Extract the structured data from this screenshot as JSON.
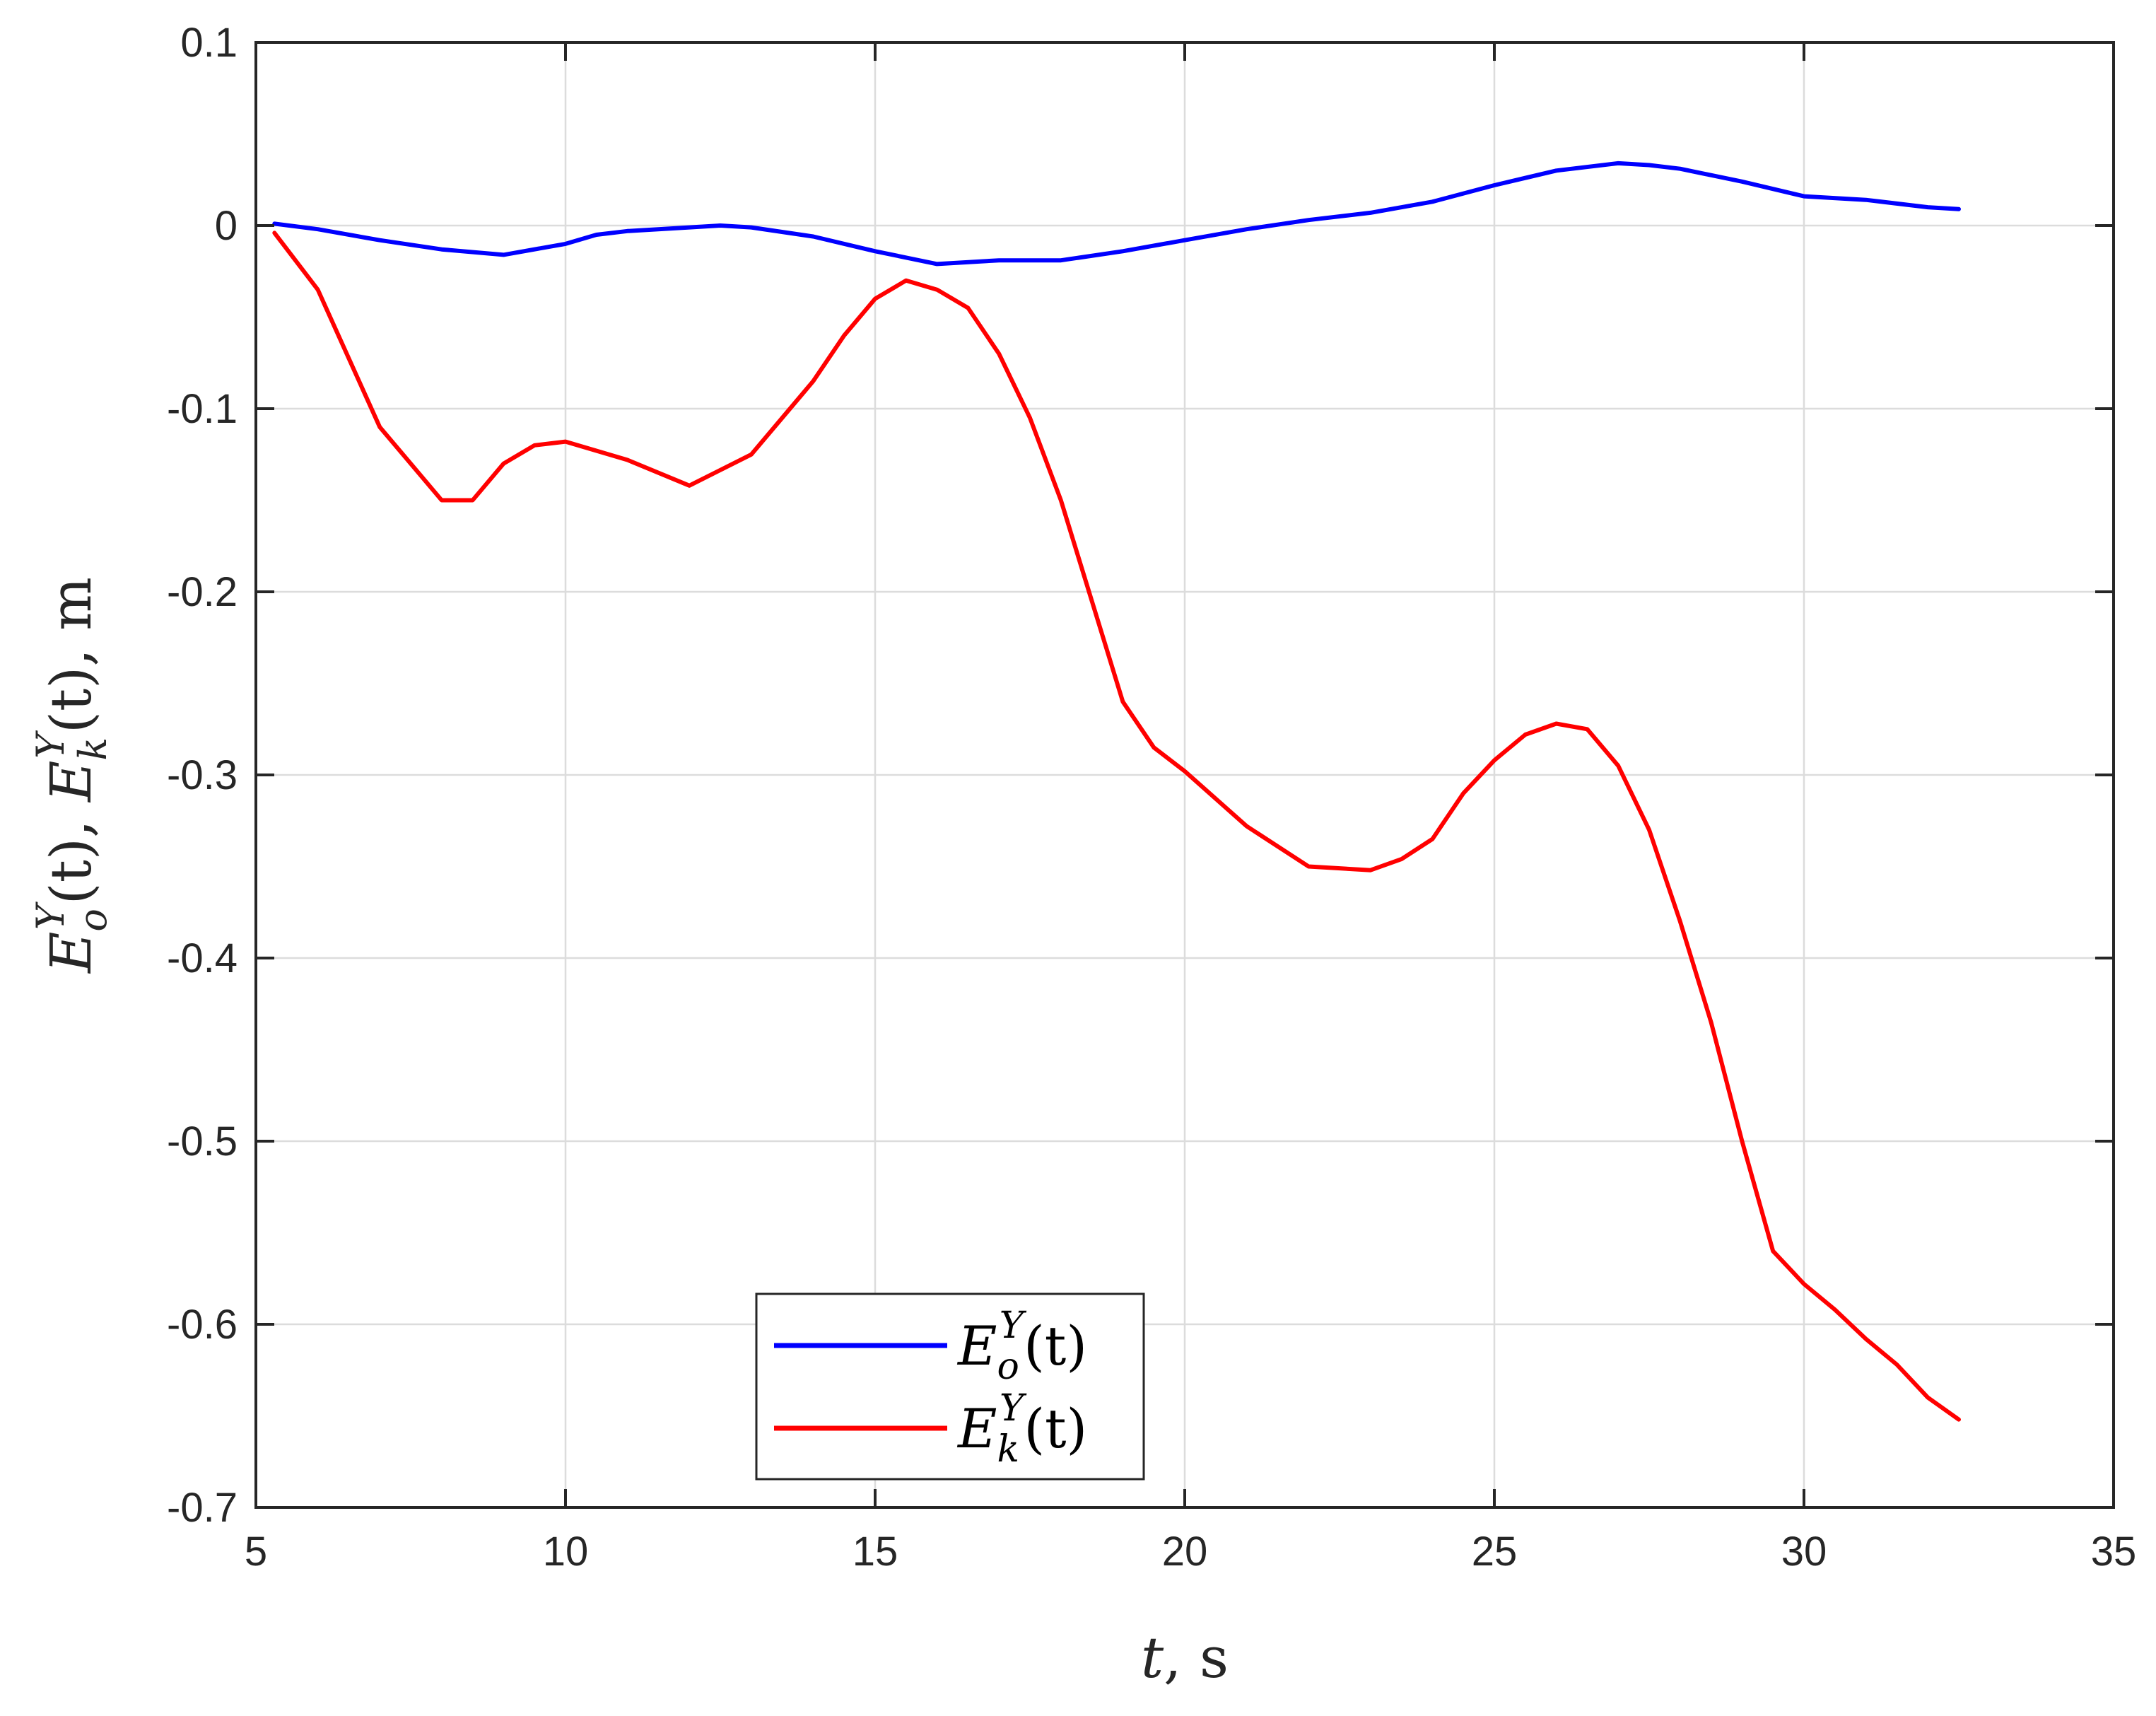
{
  "chart_data": {
    "type": "line",
    "title": "",
    "xlabel": "t, s",
    "ylabel": "E_o^Y(t), E_k^Y(t), m",
    "xlabel_parts": {
      "var": "t",
      "rest": ", s"
    },
    "ylabel_parts": {
      "first": {
        "base": "E",
        "sub": "o",
        "sup": "Y",
        "arg": "(t)"
      },
      "second": {
        "base": "E",
        "sub": "k",
        "sup": "Y",
        "arg": "(t)"
      },
      "sep": ", ",
      "unit": ", m"
    },
    "xlim": [
      5,
      35
    ],
    "ylim": [
      -0.7,
      0.1
    ],
    "xticks": [
      5,
      10,
      15,
      20,
      25,
      30,
      35
    ],
    "xtick_labels": [
      "5",
      "10",
      "15",
      "20",
      "25",
      "30",
      "35"
    ],
    "yticks": [
      0.1,
      0,
      -0.1,
      -0.2,
      -0.3,
      -0.4,
      -0.5,
      -0.6,
      -0.7
    ],
    "ytick_labels": [
      "0.1",
      "0",
      "-0.1",
      "-0.2",
      "-0.3",
      "-0.4",
      "-0.5",
      "-0.6",
      "-0.7"
    ],
    "grid": true,
    "legend_position": "bottom-center",
    "series": [
      {
        "name": "E_o^Y(t)",
        "label_parts": {
          "base": "E",
          "sub": "o",
          "sup": "Y",
          "arg": "(t)"
        },
        "color": "#0000ff",
        "x": [
          5.3,
          6.0,
          7.0,
          8.0,
          9.0,
          10.0,
          10.5,
          11.0,
          12.0,
          12.5,
          13.0,
          14.0,
          15.0,
          16.0,
          17.0,
          18.0,
          19.0,
          20.0,
          21.0,
          22.0,
          23.0,
          24.0,
          25.0,
          26.0,
          27.0,
          27.5,
          28.0,
          29.0,
          30.0,
          31.0,
          32.0,
          32.5
        ],
        "y": [
          0.001,
          -0.002,
          -0.008,
          -0.013,
          -0.016,
          -0.01,
          -0.005,
          -0.003,
          -0.001,
          0.0,
          -0.001,
          -0.006,
          -0.014,
          -0.021,
          -0.019,
          -0.019,
          -0.014,
          -0.008,
          -0.002,
          0.003,
          0.007,
          0.013,
          0.022,
          0.03,
          0.034,
          0.033,
          0.031,
          0.024,
          0.016,
          0.014,
          0.01,
          0.009
        ]
      },
      {
        "name": "E_k^Y(t)",
        "label_parts": {
          "base": "E",
          "sub": "k",
          "sup": "Y",
          "arg": "(t)"
        },
        "color": "#ff0000",
        "x": [
          5.3,
          6.0,
          7.0,
          8.0,
          8.5,
          9.0,
          9.5,
          10.0,
          11.0,
          12.0,
          13.0,
          14.0,
          14.5,
          15.0,
          15.5,
          16.0,
          16.5,
          17.0,
          17.5,
          18.0,
          18.5,
          19.0,
          19.5,
          20.0,
          21.0,
          22.0,
          23.0,
          23.5,
          24.0,
          24.5,
          25.0,
          25.5,
          26.0,
          26.5,
          27.0,
          27.5,
          28.0,
          28.5,
          29.0,
          29.5,
          30.0,
          30.5,
          31.0,
          31.5,
          32.0,
          32.5
        ],
        "y": [
          -0.004,
          -0.035,
          -0.11,
          -0.15,
          -0.15,
          -0.13,
          -0.12,
          -0.118,
          -0.128,
          -0.142,
          -0.125,
          -0.085,
          -0.06,
          -0.04,
          -0.03,
          -0.035,
          -0.045,
          -0.07,
          -0.105,
          -0.15,
          -0.205,
          -0.26,
          -0.285,
          -0.298,
          -0.328,
          -0.35,
          -0.352,
          -0.346,
          -0.335,
          -0.31,
          -0.292,
          -0.278,
          -0.272,
          -0.275,
          -0.295,
          -0.33,
          -0.38,
          -0.435,
          -0.5,
          -0.56,
          -0.578,
          -0.592,
          -0.608,
          -0.622,
          -0.64,
          -0.652
        ]
      }
    ]
  }
}
